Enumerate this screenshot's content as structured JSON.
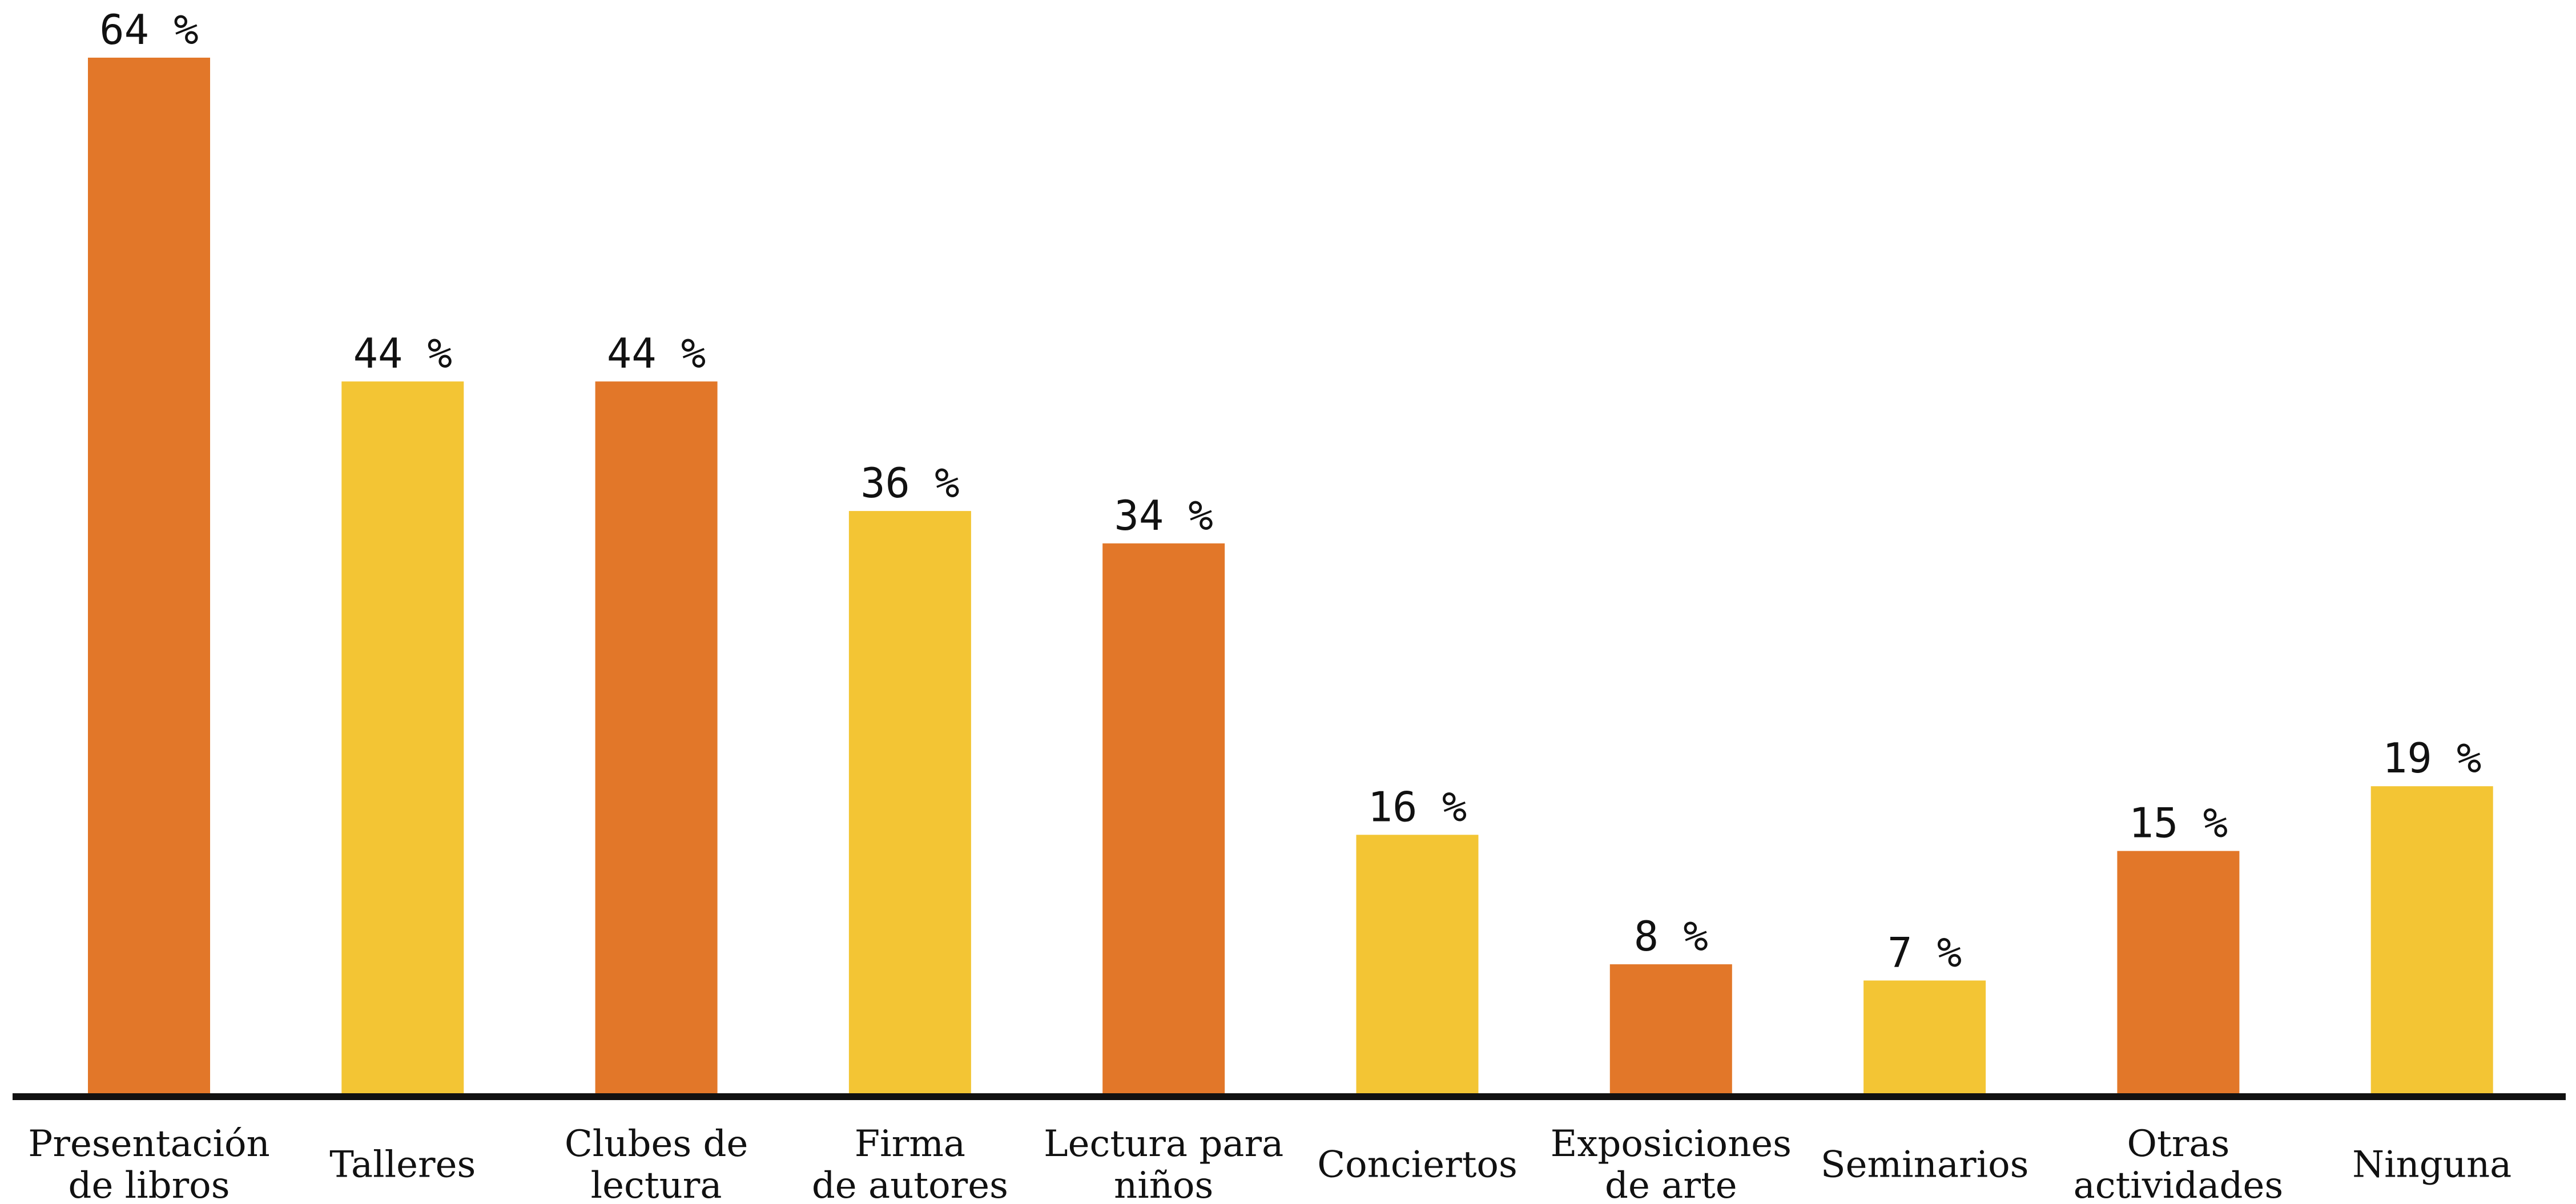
{
  "chart_data": {
    "type": "bar",
    "title": "",
    "xlabel": "",
    "ylabel": "",
    "ylim": [
      0,
      64
    ],
    "grid": false,
    "legend": "none",
    "categories": [
      [
        "Presentación",
        "de libros"
      ],
      [
        "Talleres"
      ],
      [
        "Clubes de",
        "lectura"
      ],
      [
        "Firma",
        "de autores"
      ],
      [
        "Lectura para",
        "niños"
      ],
      [
        "Conciertos"
      ],
      [
        "Exposiciones",
        "de arte"
      ],
      [
        "Seminarios"
      ],
      [
        "Otras",
        "actividades"
      ],
      [
        "Ninguna"
      ]
    ],
    "values": [
      64,
      44,
      44,
      36,
      34,
      16,
      8,
      7,
      15,
      19
    ],
    "value_labels": [
      "64 %",
      "44 %",
      "44 %",
      "36 %",
      "34 %",
      "16 %",
      "8 %",
      "7 %",
      "15 %",
      "19 %"
    ],
    "bar_colors": [
      "#E27729",
      "#F3C534",
      "#E27729",
      "#F3C534",
      "#E27729",
      "#F3C534",
      "#E27729",
      "#F3C534",
      "#E27729",
      "#F3C534"
    ],
    "axis_color": "#111111"
  }
}
